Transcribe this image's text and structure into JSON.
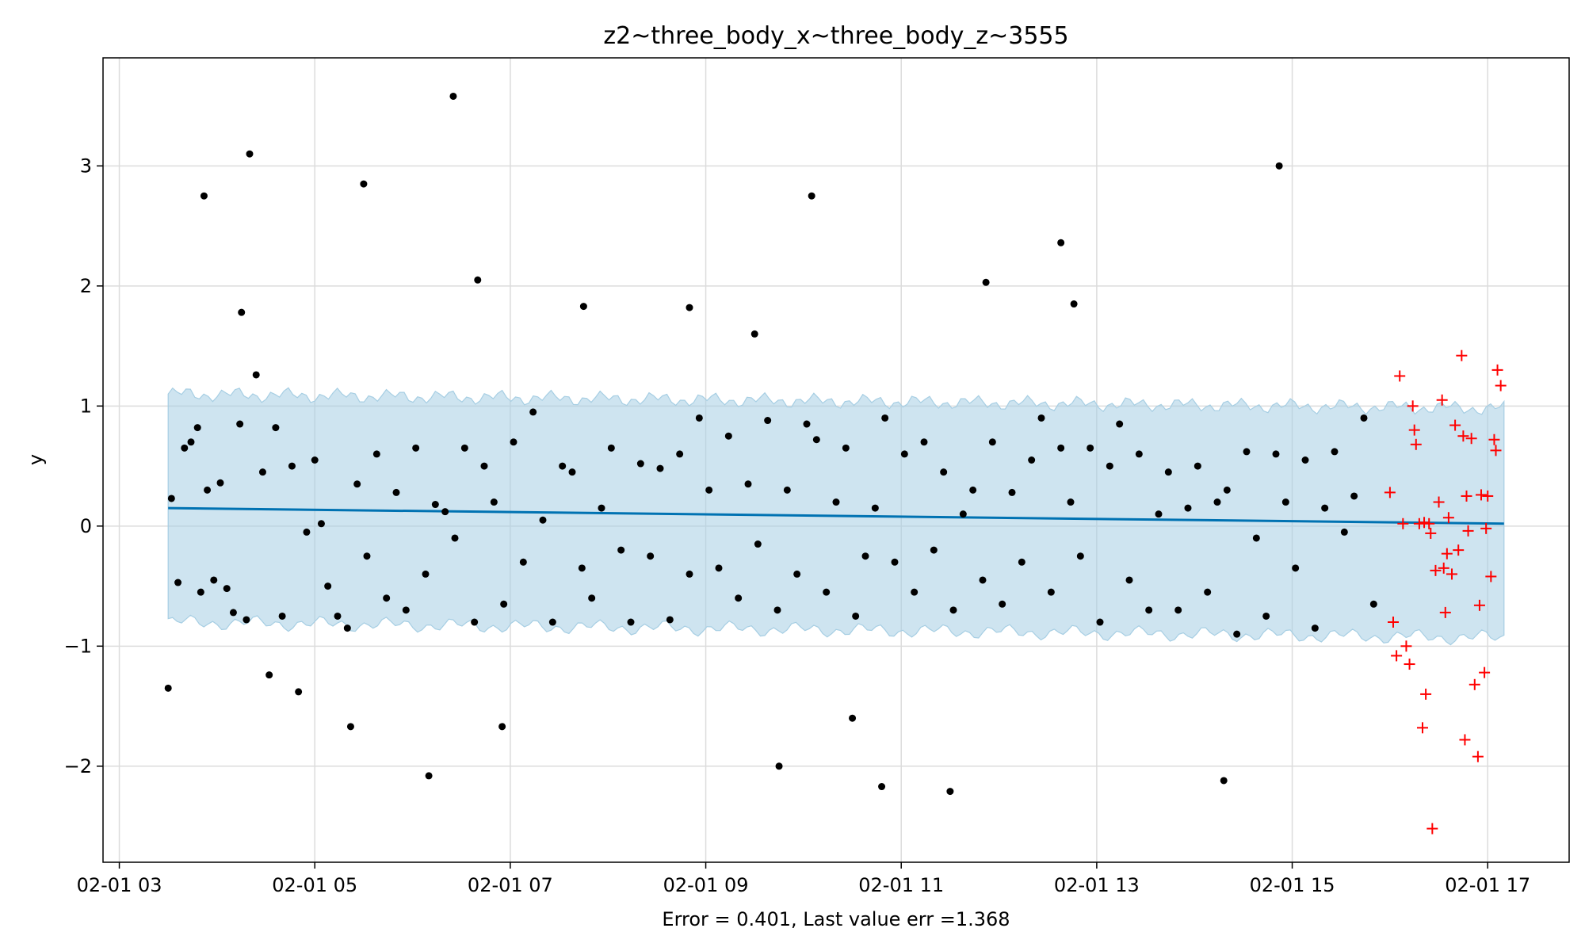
{
  "chart_data": {
    "type": "scatter",
    "title": "z2~three_body_x~three_body_z~3555",
    "xlabel": "Error = 0.401, Last value err =1.368",
    "ylabel": "y",
    "x_range": [
      "02-01 02:50",
      "02-01 17:50"
    ],
    "ylim": [
      -2.8,
      3.9
    ],
    "x_ticks": [
      "02-01 03",
      "02-01 05",
      "02-01 07",
      "02-01 09",
      "02-01 11",
      "02-01 13",
      "02-01 15",
      "02-01 17"
    ],
    "y_ticks": [
      "−2",
      "−1",
      "0",
      "1",
      "2",
      "3"
    ],
    "grid": true,
    "colors": {
      "observed": "#000000",
      "forecast_points": "#ff0000",
      "trend": "#0072b2",
      "band": "#a6cee3"
    },
    "trend_line": {
      "name": "trend",
      "x": [
        "02-01 03:30",
        "02-01 17:10"
      ],
      "y": [
        0.15,
        0.02
      ]
    },
    "uncertainty_band": {
      "x": [
        "02-01 03:30",
        "02-01 17:10"
      ],
      "lower": [
        -0.8,
        -0.93
      ],
      "upper": [
        1.1,
        0.98
      ]
    },
    "series": [
      {
        "marker": "dot",
        "x": [
          "02-01 03:30",
          "02-01 03:32",
          "02-01 03:36",
          "02-01 03:40",
          "02-01 03:44",
          "02-01 03:48",
          "02-01 03:50",
          "02-01 03:54",
          "02-01 03:58",
          "02-01 04:02",
          "02-01 04:06",
          "02-01 04:10",
          "02-01 04:14",
          "02-01 04:18",
          "02-01 04:24",
          "02-01 04:28",
          "02-01 04:32",
          "02-01 04:36",
          "02-01 04:40",
          "02-01 04:46",
          "02-01 04:50",
          "02-01 04:55",
          "02-01 05:00",
          "02-01 05:04",
          "02-01 05:08",
          "02-01 05:14",
          "02-01 05:20",
          "02-01 05:26",
          "02-01 05:32",
          "02-01 05:38",
          "02-01 05:44",
          "02-01 05:50",
          "02-01 05:56",
          "02-01 06:02",
          "02-01 06:08",
          "02-01 06:14",
          "02-01 06:20",
          "02-01 06:26",
          "02-01 06:32",
          "02-01 06:38",
          "02-01 06:44",
          "02-01 06:50",
          "02-01 06:56",
          "02-01 07:02",
          "02-01 07:08",
          "02-01 07:14",
          "02-01 07:20",
          "02-01 07:26",
          "02-01 07:32",
          "02-01 07:38",
          "02-01 07:44",
          "02-01 07:50",
          "02-01 07:56",
          "02-01 08:02",
          "02-01 08:08",
          "02-01 08:14",
          "02-01 08:20",
          "02-01 08:26",
          "02-01 08:32",
          "02-01 08:38",
          "02-01 08:44",
          "02-01 08:50",
          "02-01 08:56",
          "02-01 09:02",
          "02-01 09:08",
          "02-01 09:14",
          "02-01 09:20",
          "02-01 09:26",
          "02-01 09:32",
          "02-01 09:38",
          "02-01 09:44",
          "02-01 09:50",
          "02-01 09:56",
          "02-01 10:02",
          "02-01 10:08",
          "02-01 10:14",
          "02-01 10:20",
          "02-01 10:26",
          "02-01 10:32",
          "02-01 10:38",
          "02-01 10:44",
          "02-01 10:50",
          "02-01 10:56",
          "02-01 11:02",
          "02-01 11:08",
          "02-01 11:14",
          "02-01 11:20",
          "02-01 11:26",
          "02-01 11:32",
          "02-01 11:38",
          "02-01 11:44",
          "02-01 11:50",
          "02-01 11:56",
          "02-01 12:02",
          "02-01 12:08",
          "02-01 12:14",
          "02-01 12:20",
          "02-01 12:26",
          "02-01 12:32",
          "02-01 12:38",
          "02-01 12:44",
          "02-01 12:50",
          "02-01 12:56",
          "02-01 13:02",
          "02-01 13:08",
          "02-01 13:14",
          "02-01 13:20",
          "02-01 13:26",
          "02-01 13:32",
          "02-01 13:38",
          "02-01 13:44",
          "02-01 13:50",
          "02-01 13:56",
          "02-01 14:02",
          "02-01 14:08",
          "02-01 14:14",
          "02-01 14:20",
          "02-01 14:26",
          "02-01 14:32",
          "02-01 14:38",
          "02-01 14:44",
          "02-01 14:50",
          "02-01 14:56",
          "02-01 15:02",
          "02-01 15:08",
          "02-01 15:14",
          "02-01 15:20",
          "02-01 15:26",
          "02-01 15:32",
          "02-01 15:38",
          "02-01 15:44",
          "02-01 15:50",
          "02-01 04:20",
          "02-01 05:30",
          "02-01 06:25",
          "02-01 06:40",
          "02-01 10:05",
          "02-01 14:52",
          "02-01 03:52",
          "02-01 04:15",
          "02-01 07:45",
          "02-01 08:50",
          "02-01 09:30",
          "02-01 11:52",
          "02-01 12:38",
          "02-01 12:46",
          "02-01 10:30",
          "02-01 06:10",
          "02-01 09:45",
          "02-01 10:48",
          "02-01 11:30",
          "02-01 14:18",
          "02-01 05:22",
          "02-01 06:55"
        ],
        "y": [
          -1.35,
          0.23,
          -0.47,
          0.65,
          0.7,
          0.82,
          -0.55,
          0.3,
          -0.45,
          0.36,
          -0.52,
          -0.72,
          0.85,
          -0.78,
          1.26,
          0.45,
          -1.24,
          0.82,
          -0.75,
          0.5,
          -1.38,
          -0.05,
          0.55,
          0.02,
          -0.5,
          -0.75,
          -0.85,
          0.35,
          -0.25,
          0.6,
          -0.6,
          0.28,
          -0.7,
          0.65,
          -0.4,
          0.18,
          0.12,
          -0.1,
          0.65,
          -0.8,
          0.5,
          0.2,
          -0.65,
          0.7,
          -0.3,
          0.95,
          0.05,
          -0.8,
          0.5,
          0.45,
          -0.35,
          -0.6,
          0.15,
          0.65,
          -0.2,
          -0.8,
          0.52,
          -0.25,
          0.48,
          -0.78,
          0.6,
          -0.4,
          0.9,
          0.3,
          -0.35,
          0.75,
          -0.6,
          0.35,
          -0.15,
          0.88,
          -0.7,
          0.3,
          -0.4,
          0.85,
          0.72,
          -0.55,
          0.2,
          0.65,
          -0.75,
          -0.25,
          0.15,
          0.9,
          -0.3,
          0.6,
          -0.55,
          0.7,
          -0.2,
          0.45,
          -0.7,
          0.1,
          0.3,
          -0.45,
          0.7,
          -0.65,
          0.28,
          -0.3,
          0.55,
          0.9,
          -0.55,
          0.65,
          0.2,
          -0.25,
          0.65,
          -0.8,
          0.5,
          0.85,
          -0.45,
          0.6,
          -0.7,
          0.1,
          0.45,
          -0.7,
          0.15,
          0.5,
          -0.55,
          0.2,
          0.3,
          -0.9,
          0.62,
          -0.1,
          -0.75,
          0.6,
          0.2,
          -0.35,
          0.55,
          -0.85,
          0.15,
          0.62,
          -0.05,
          0.25,
          0.9,
          -0.65,
          3.1,
          2.85,
          3.58,
          2.05,
          2.75,
          3.0,
          2.75,
          1.78,
          1.83,
          1.82,
          1.6,
          2.03,
          2.36,
          1.85,
          -1.6,
          -2.08,
          -2.0,
          -2.17,
          -2.21,
          -2.12,
          -1.67,
          -1.67
        ]
      },
      {
        "marker": "plus",
        "x": [
          "02-01 16:00",
          "02-01 16:02",
          "02-01 16:04",
          "02-01 16:06",
          "02-01 16:08",
          "02-01 16:10",
          "02-01 16:12",
          "02-01 16:14",
          "02-01 16:16",
          "02-01 16:18",
          "02-01 16:20",
          "02-01 16:22",
          "02-01 16:24",
          "02-01 16:26",
          "02-01 16:28",
          "02-01 16:30",
          "02-01 16:32",
          "02-01 16:34",
          "02-01 16:36",
          "02-01 16:38",
          "02-01 16:40",
          "02-01 16:42",
          "02-01 16:44",
          "02-01 16:46",
          "02-01 16:48",
          "02-01 16:50",
          "02-01 16:52",
          "02-01 16:54",
          "02-01 16:56",
          "02-01 16:58",
          "02-01 17:00",
          "02-01 17:02",
          "02-01 17:04",
          "02-01 17:06",
          "02-01 17:08",
          "02-01 16:15",
          "02-01 16:25",
          "02-01 16:35",
          "02-01 16:45",
          "02-01 16:55",
          "02-01 17:05",
          "02-01 16:21",
          "02-01 16:33",
          "02-01 16:47",
          "02-01 16:59"
        ],
        "y": [
          0.28,
          -0.8,
          -1.08,
          1.25,
          0.02,
          -1.0,
          -1.15,
          1.0,
          0.68,
          0.02,
          -1.68,
          -1.4,
          0.02,
          -2.52,
          -0.37,
          0.2,
          1.05,
          -0.72,
          0.07,
          -0.4,
          0.84,
          -0.2,
          1.42,
          -1.78,
          -0.04,
          0.73,
          -1.32,
          -1.92,
          0.26,
          -1.22,
          0.25,
          -0.42,
          0.72,
          1.3,
          1.17,
          0.8,
          -0.06,
          -0.23,
          0.75,
          -0.66,
          0.63,
          0.03,
          -0.35,
          0.25,
          -0.02
        ]
      }
    ]
  }
}
